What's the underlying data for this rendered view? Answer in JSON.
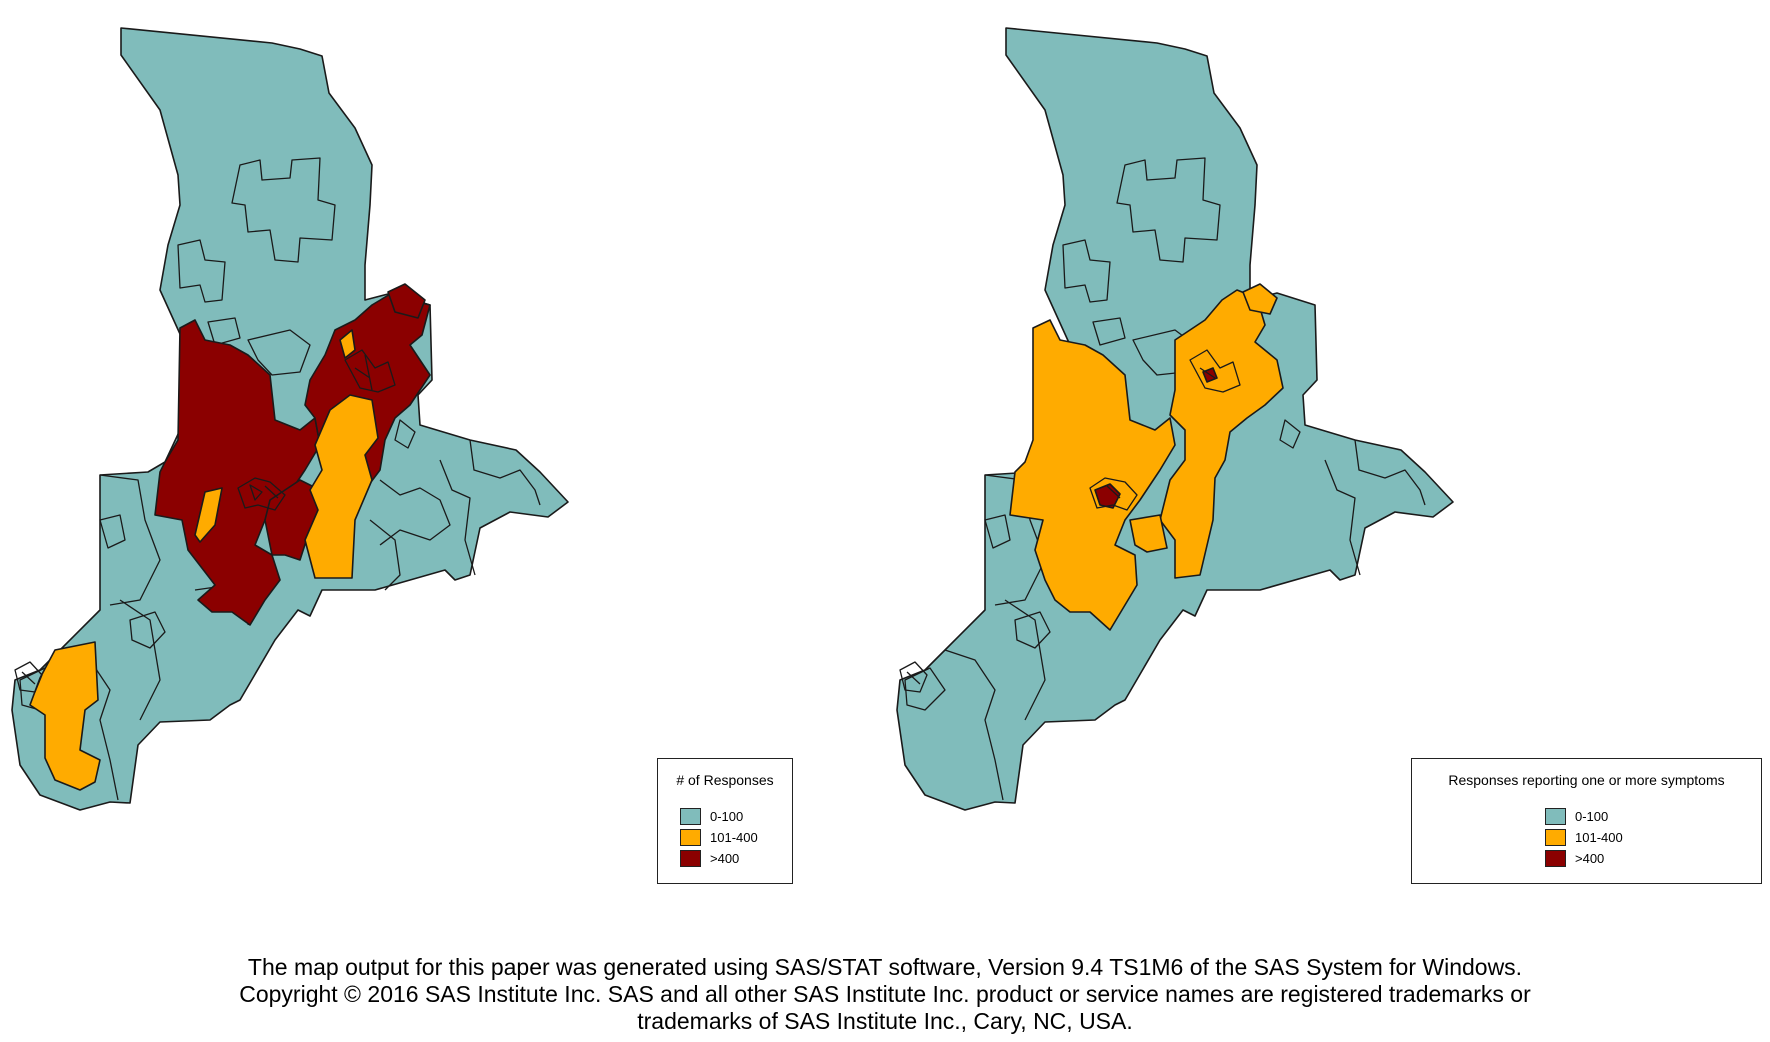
{
  "colors": {
    "low": "#80bcbb",
    "mid": "#ffab00",
    "high": "#8b0000"
  },
  "maps": [
    {
      "legend_title": "# of Responses",
      "legend_items": [
        {
          "label": "0-100",
          "color": "#80bcbb"
        },
        {
          "label": "101-400",
          "color": "#ffab00"
        },
        {
          "label": ">400",
          "color": "#8b0000"
        }
      ]
    },
    {
      "legend_title": "Responses reporting one or more symptoms",
      "legend_items": [
        {
          "label": "0-100",
          "color": "#80bcbb"
        },
        {
          "label": "101-400",
          "color": "#ffab00"
        },
        {
          "label": ">400",
          "color": "#8b0000"
        }
      ]
    }
  ],
  "caption": {
    "line1": "The map output for this paper was generated using SAS/STAT software, Version 9.4 TS1M6 of the SAS System for Windows.",
    "line2": "Copyright © 2016 SAS Institute Inc. SAS and all other SAS Institute Inc. product or service names are registered trademarks or",
    "line3": "trademarks of SAS Institute Inc., Cary, NC, USA."
  }
}
